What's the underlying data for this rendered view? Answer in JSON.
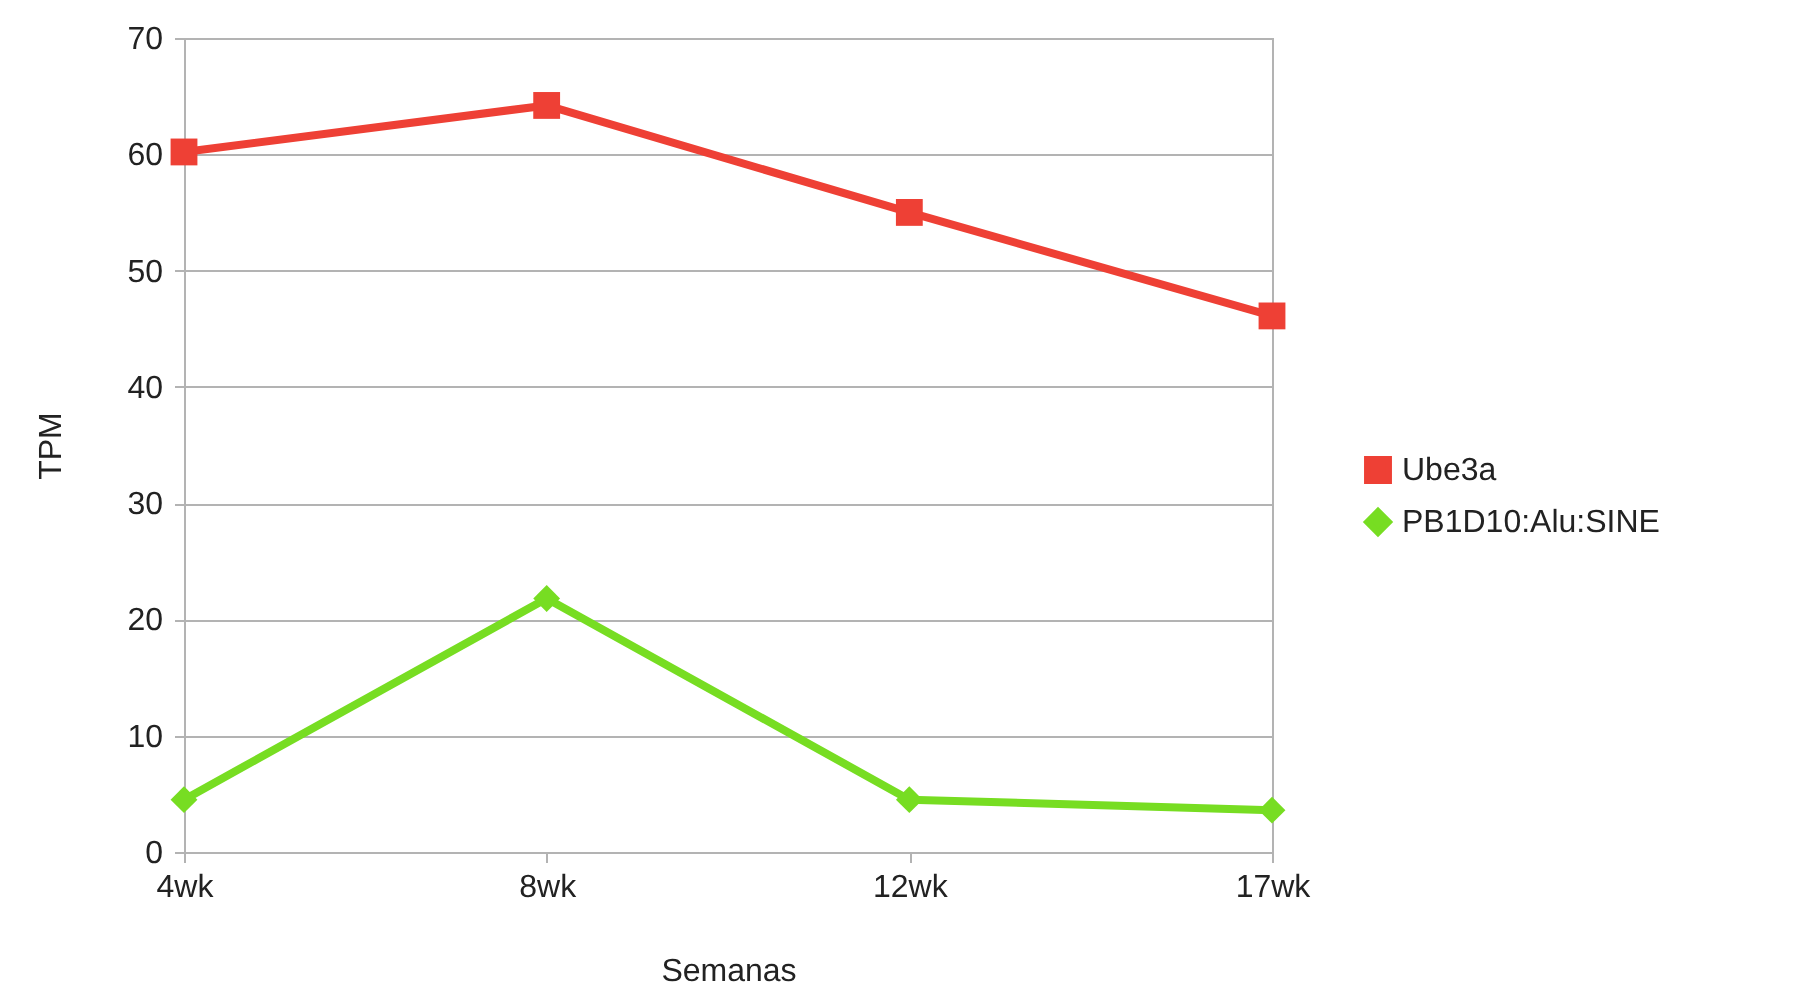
{
  "chart_data": {
    "type": "line",
    "xlabel": "Semanas",
    "ylabel": "TPM",
    "categories": [
      "4wk",
      "8wk",
      "12wk",
      "17wk"
    ],
    "series": [
      {
        "name": "Ube3a",
        "color": "#ee4035",
        "marker": "square",
        "values": [
          60.2,
          64.2,
          55.0,
          46.1
        ]
      },
      {
        "name": "PB1D10:Alu:SINE",
        "color": "#77dd22",
        "marker": "diamond",
        "values": [
          4.5,
          21.8,
          4.5,
          3.6
        ]
      }
    ],
    "ylim": [
      0,
      70
    ],
    "yticks": [
      0,
      10,
      20,
      30,
      40,
      50,
      60,
      70
    ],
    "grid": "y",
    "legend": "right",
    "line_style": "solid"
  }
}
